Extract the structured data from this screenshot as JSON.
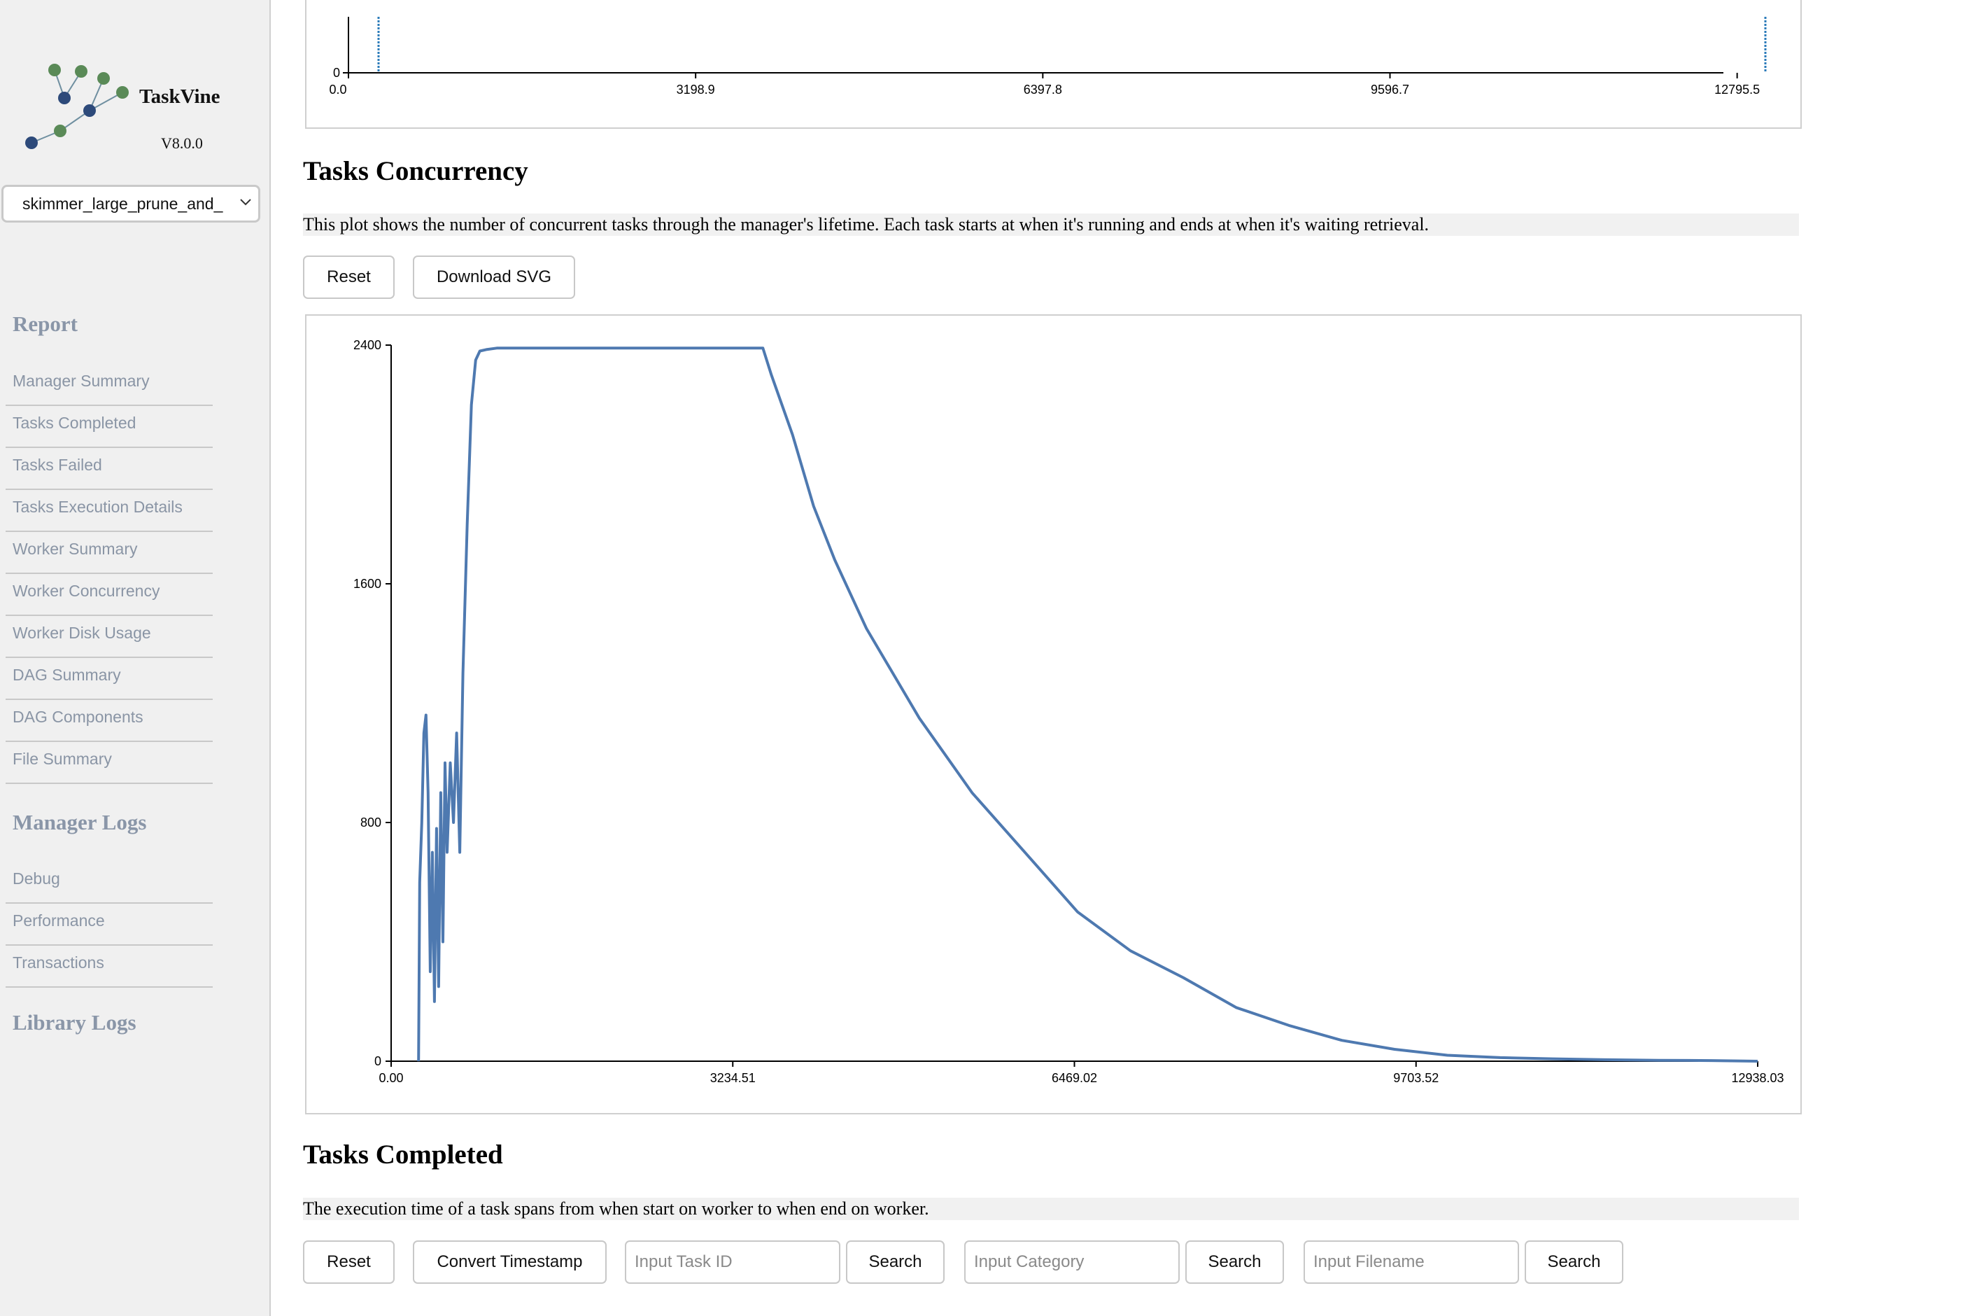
{
  "sidebar": {
    "app_title": "TaskVine",
    "version": "V8.0.0",
    "log_select_value": "skimmer_large_prune_and_",
    "report_heading": "Report",
    "report_items": [
      "Manager Summary",
      "Tasks Completed",
      "Tasks Failed",
      "Tasks Execution Details",
      "Worker Summary",
      "Worker Concurrency",
      "Worker Disk Usage",
      "DAG Summary",
      "DAG Components",
      "File Summary"
    ],
    "manager_logs_heading": "Manager Logs",
    "manager_logs_items": [
      "Debug",
      "Performance",
      "Transactions"
    ],
    "library_logs_heading": "Library Logs"
  },
  "top_chart": {
    "y_tick": "0",
    "x_ticks": [
      "0.0",
      "3198.9",
      "6397.8",
      "9596.7",
      "12795.5"
    ]
  },
  "concurrency": {
    "title": "Tasks Concurrency",
    "description": "This plot shows the number of concurrent tasks through the manager's lifetime. Each task starts at when it's running and ends at when it's waiting retrieval.",
    "reset_label": "Reset",
    "download_label": "Download SVG"
  },
  "completed": {
    "title": "Tasks Completed",
    "description": "The execution time of a task spans from when start on worker to when end on worker.",
    "reset_label": "Reset",
    "convert_label": "Convert Timestamp",
    "task_id_placeholder": "Input Task ID",
    "category_placeholder": "Input Category",
    "filename_placeholder": "Input Filename",
    "search_label": "Search"
  },
  "chart_data": {
    "type": "line",
    "title": "",
    "xlabel": "",
    "ylabel": "",
    "xlim": [
      0,
      12938.03
    ],
    "ylim": [
      0,
      2400
    ],
    "x_ticks": [
      "0.00",
      "3234.51",
      "6469.02",
      "9703.52",
      "12938.03"
    ],
    "y_ticks": [
      "0",
      "800",
      "1600",
      "2400"
    ],
    "color": "#4e79b0",
    "series": [
      {
        "x": [
          260,
          270,
          290,
          310,
          330,
          350,
          370,
          390,
          410,
          430,
          450,
          470,
          490,
          510,
          530,
          560,
          590,
          620,
          650,
          680,
          720,
          760,
          800,
          840,
          900,
          1000,
          1500,
          2000,
          2500,
          3000,
          3500,
          3520,
          3600,
          3800,
          4000,
          4200,
          4500,
          5000,
          5500,
          6000,
          6500,
          7000,
          7500,
          8000,
          8500,
          9000,
          9500,
          10000,
          10500,
          11000,
          11500,
          12000,
          12500,
          12938
        ],
        "y": [
          0,
          600,
          800,
          1100,
          1160,
          900,
          300,
          700,
          200,
          780,
          250,
          900,
          400,
          1000,
          700,
          1000,
          800,
          1100,
          700,
          1300,
          1800,
          2200,
          2350,
          2380,
          2385,
          2390,
          2390,
          2390,
          2390,
          2390,
          2390,
          2390,
          2300,
          2100,
          1860,
          1680,
          1450,
          1150,
          900,
          700,
          500,
          370,
          280,
          180,
          120,
          70,
          40,
          20,
          12,
          8,
          5,
          3,
          2,
          0
        ]
      }
    ]
  }
}
